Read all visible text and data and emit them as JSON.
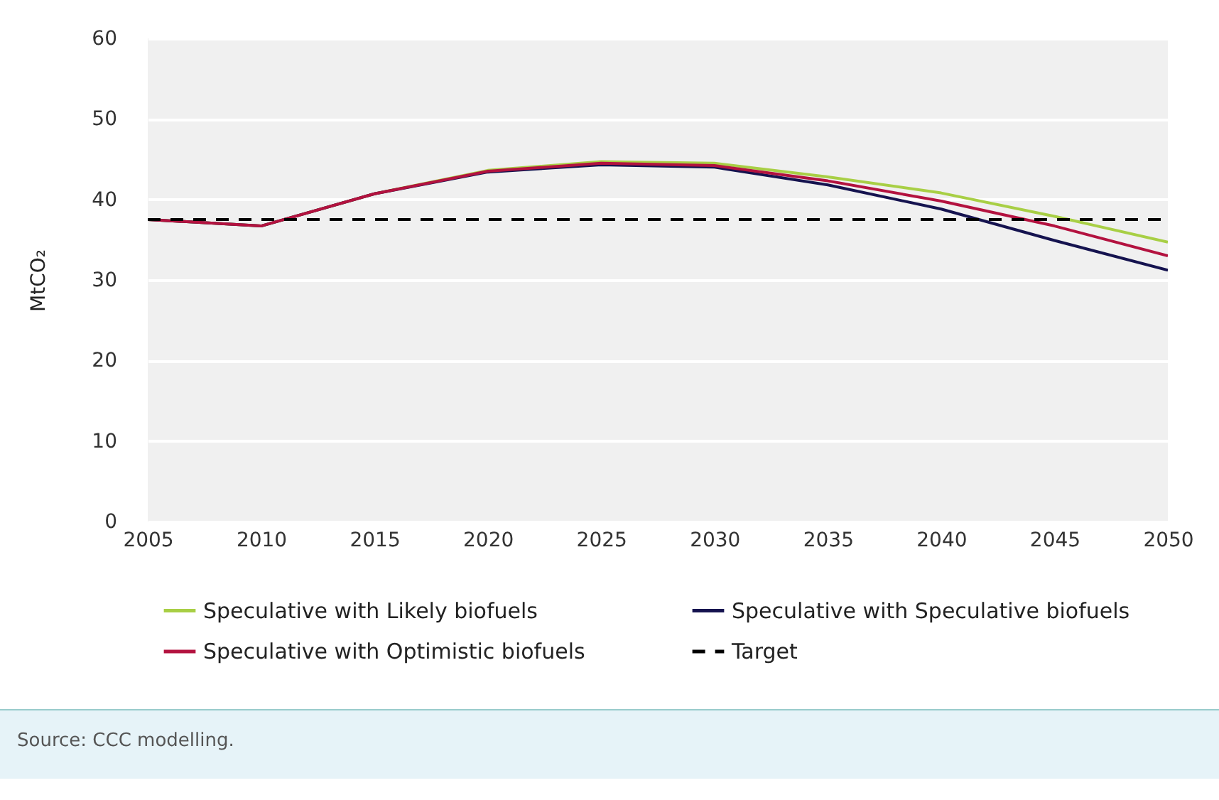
{
  "chart_data": {
    "type": "line",
    "ylabel": "MtCO₂",
    "x": [
      2005,
      2010,
      2015,
      2020,
      2025,
      2030,
      2035,
      2040,
      2045,
      2050
    ],
    "series": [
      {
        "name": "Speculative with Likely biofuels",
        "color": "#a8cf45",
        "values": [
          37.5,
          36.7,
          40.7,
          43.6,
          44.7,
          44.5,
          42.8,
          40.8,
          37.9,
          34.7
        ]
      },
      {
        "name": "Speculative with Speculative biofuels",
        "color": "#15134f",
        "values": [
          37.5,
          36.7,
          40.7,
          43.4,
          44.3,
          44.0,
          41.8,
          38.8,
          34.9,
          31.2
        ]
      },
      {
        "name": "Speculative with Optimistic biofuels",
        "color": "#b3123f",
        "values": [
          37.5,
          36.7,
          40.7,
          43.5,
          44.5,
          44.2,
          42.3,
          39.8,
          36.7,
          33.0
        ]
      },
      {
        "name": "Target",
        "color": "#000000",
        "line_style": "dashed",
        "values": [
          37.5,
          37.5,
          37.5,
          37.5,
          37.5,
          37.5,
          37.5,
          37.5,
          37.5,
          37.5
        ]
      }
    ],
    "xlim": [
      2005,
      2050
    ],
    "xticks": [
      2005,
      2010,
      2015,
      2020,
      2025,
      2030,
      2035,
      2040,
      2045,
      2050
    ],
    "ylim": [
      0,
      60
    ],
    "yticks": [
      0,
      10,
      20,
      30,
      40,
      50,
      60
    ],
    "grid": "y",
    "legend": "bottom",
    "marker": "none",
    "line_style": "solid",
    "annotations": [
      "Source: CCC modelling."
    ]
  }
}
